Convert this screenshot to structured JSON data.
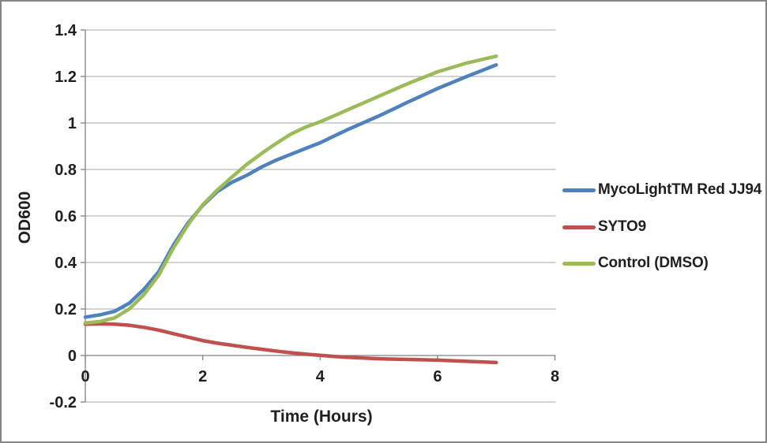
{
  "chart_data": {
    "type": "line",
    "title": "",
    "xlabel": "Time (Hours)",
    "ylabel": "OD600",
    "xlim": [
      0,
      8
    ],
    "ylim": [
      -0.2,
      1.4
    ],
    "grid": true,
    "legend_position": "right-outside",
    "x_axis": {
      "label": "Time (Hours)",
      "tick_values": [
        0,
        2,
        4,
        6,
        8
      ],
      "tick_labels": [
        "0",
        "2",
        "4",
        "6",
        "8"
      ]
    },
    "y_axis": {
      "label": "OD600",
      "tick_values": [
        1.4,
        1.2,
        1,
        0.8,
        0.6,
        0.4,
        0.2,
        0,
        -0.2
      ],
      "tick_labels": [
        "1.4",
        "1.2",
        "1",
        "0.8",
        "0.6",
        "0.4",
        "0.2",
        "0",
        "-0.2"
      ]
    },
    "series": [
      {
        "name": "MycoLightTM Red JJ94",
        "color": "#4F81BD",
        "points": [
          [
            0,
            0.165
          ],
          [
            0.25,
            0.175
          ],
          [
            0.5,
            0.19
          ],
          [
            0.75,
            0.225
          ],
          [
            1,
            0.285
          ],
          [
            1.25,
            0.36
          ],
          [
            1.5,
            0.475
          ],
          [
            1.75,
            0.57
          ],
          [
            2,
            0.645
          ],
          [
            2.25,
            0.705
          ],
          [
            2.5,
            0.745
          ],
          [
            2.75,
            0.775
          ],
          [
            3,
            0.81
          ],
          [
            3.25,
            0.84
          ],
          [
            3.5,
            0.865
          ],
          [
            3.75,
            0.89
          ],
          [
            4,
            0.915
          ],
          [
            4.25,
            0.945
          ],
          [
            4.5,
            0.975
          ],
          [
            5,
            1.03
          ],
          [
            5.5,
            1.09
          ],
          [
            6,
            1.148
          ],
          [
            6.5,
            1.2
          ],
          [
            7,
            1.25
          ]
        ]
      },
      {
        "name": "SYTO9",
        "color": "#C0504D",
        "points": [
          [
            0,
            0.135
          ],
          [
            0.25,
            0.136
          ],
          [
            0.5,
            0.135
          ],
          [
            0.75,
            0.13
          ],
          [
            1,
            0.121
          ],
          [
            1.25,
            0.109
          ],
          [
            1.5,
            0.094
          ],
          [
            1.75,
            0.079
          ],
          [
            2,
            0.064
          ],
          [
            2.25,
            0.053
          ],
          [
            2.5,
            0.044
          ],
          [
            2.75,
            0.035
          ],
          [
            3,
            0.027
          ],
          [
            3.25,
            0.019
          ],
          [
            3.5,
            0.012
          ],
          [
            3.75,
            0.006
          ],
          [
            4,
            0.001
          ],
          [
            4.25,
            -0.004
          ],
          [
            4.5,
            -0.008
          ],
          [
            5,
            -0.014
          ],
          [
            5.5,
            -0.017
          ],
          [
            6,
            -0.02
          ],
          [
            6.5,
            -0.025
          ],
          [
            7,
            -0.03
          ]
        ]
      },
      {
        "name": "Control (DMSO)",
        "color": "#9BBB59",
        "points": [
          [
            0,
            0.14
          ],
          [
            0.25,
            0.146
          ],
          [
            0.5,
            0.162
          ],
          [
            0.75,
            0.2
          ],
          [
            1,
            0.262
          ],
          [
            1.25,
            0.345
          ],
          [
            1.5,
            0.462
          ],
          [
            1.75,
            0.562
          ],
          [
            2,
            0.648
          ],
          [
            2.25,
            0.712
          ],
          [
            2.5,
            0.768
          ],
          [
            2.75,
            0.822
          ],
          [
            3,
            0.868
          ],
          [
            3.25,
            0.912
          ],
          [
            3.5,
            0.952
          ],
          [
            3.75,
            0.982
          ],
          [
            4,
            1.005
          ],
          [
            4.25,
            1.032
          ],
          [
            4.5,
            1.06
          ],
          [
            5,
            1.115
          ],
          [
            5.5,
            1.17
          ],
          [
            6,
            1.22
          ],
          [
            6.5,
            1.258
          ],
          [
            7,
            1.287
          ]
        ]
      }
    ],
    "colors": {
      "gridline": "#A6A6A6",
      "axis": "#808080",
      "tick_text": "#1f1f1f",
      "frame_border": "#868686",
      "background": "#ffffff"
    }
  }
}
